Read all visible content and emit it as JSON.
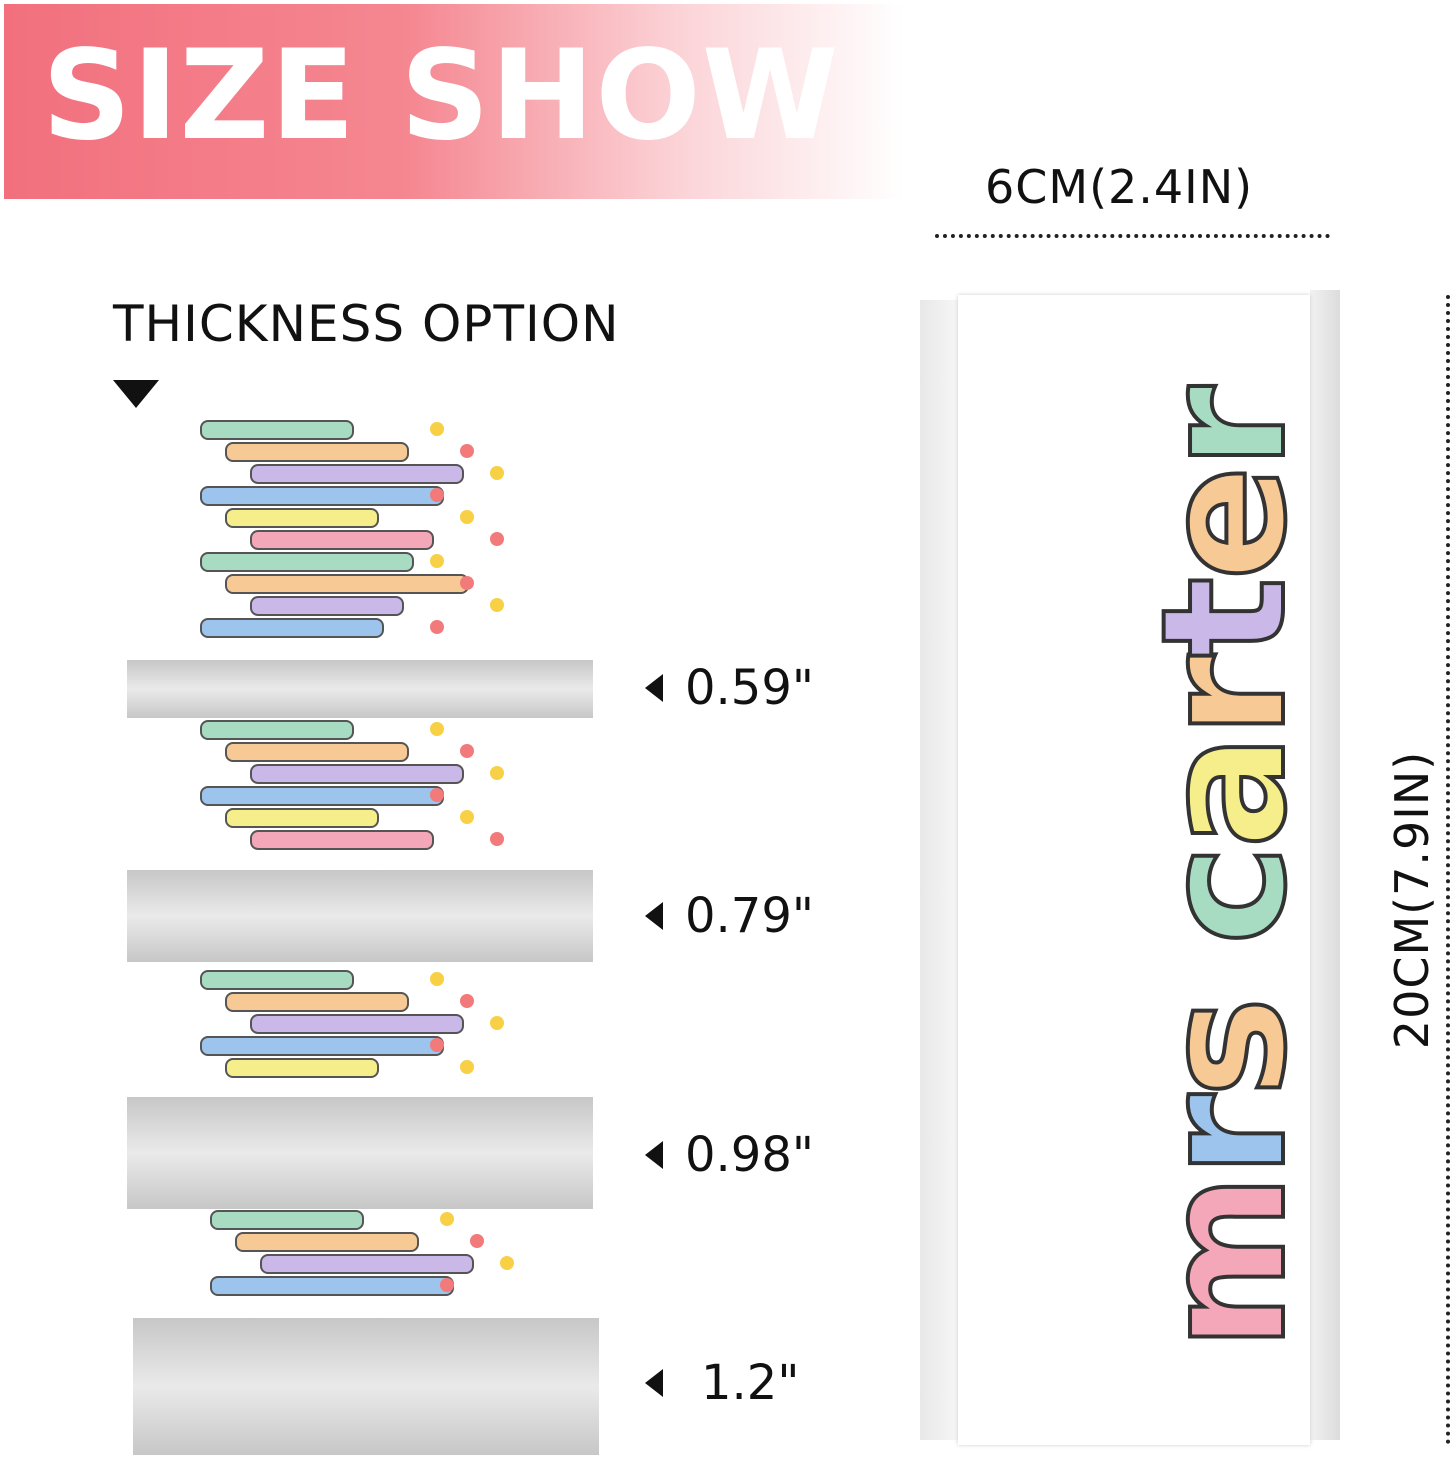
{
  "banner": {
    "title": "SIZE SHOW",
    "color": "#f2707e"
  },
  "dimensions": {
    "width": "6CM(2.4IN)",
    "height": "20CM(7.9IN)"
  },
  "thickness": {
    "title": "THICKNESS OPTION",
    "options": [
      "0.59\"",
      "0.79\"",
      "0.98\"",
      "1.2\""
    ]
  },
  "product": {
    "lettering": "mrs carter",
    "letter_colors": [
      "#f4a7b9",
      "#9cc4ec",
      "#f7c995",
      "#a7dcc2",
      "#f5ee8a",
      "#f7c995",
      "#c9b8e8",
      "#f7c995",
      "#a7dcc2"
    ]
  }
}
